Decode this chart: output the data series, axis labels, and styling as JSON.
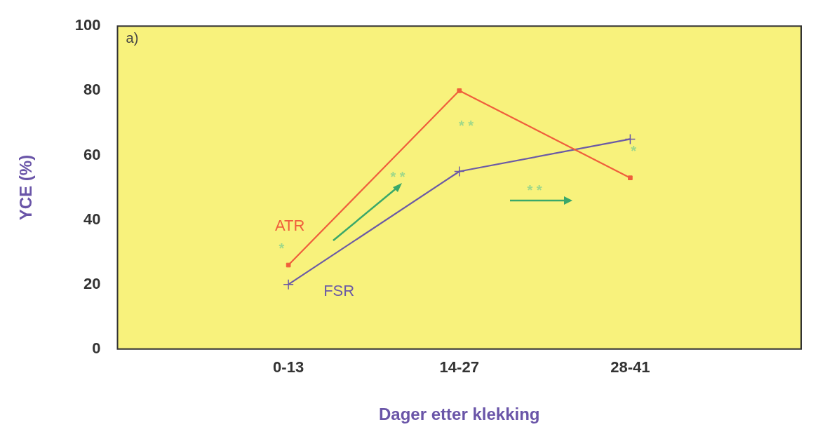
{
  "chart_data": {
    "type": "line",
    "xlabel": "Dager etter klekking",
    "ylabel": "YCE (%)",
    "categories": [
      null,
      "0-13",
      "14-27",
      "28-41",
      null
    ],
    "series": [
      {
        "name": "ATR",
        "color": "#ef5f3c",
        "marker": "square",
        "values": [
          null,
          26,
          80,
          53,
          null
        ]
      },
      {
        "name": "FSR",
        "color": "#6b5aa6",
        "marker": "cross",
        "values": [
          null,
          20,
          55,
          65,
          null
        ]
      }
    ],
    "ylim": [
      0,
      100
    ],
    "yticks": [
      0,
      20,
      40,
      60,
      80,
      100
    ],
    "grid": false,
    "legend": false,
    "annotations": [
      "a)",
      "*",
      "* *",
      "* *",
      "* *",
      "*"
    ]
  }
}
